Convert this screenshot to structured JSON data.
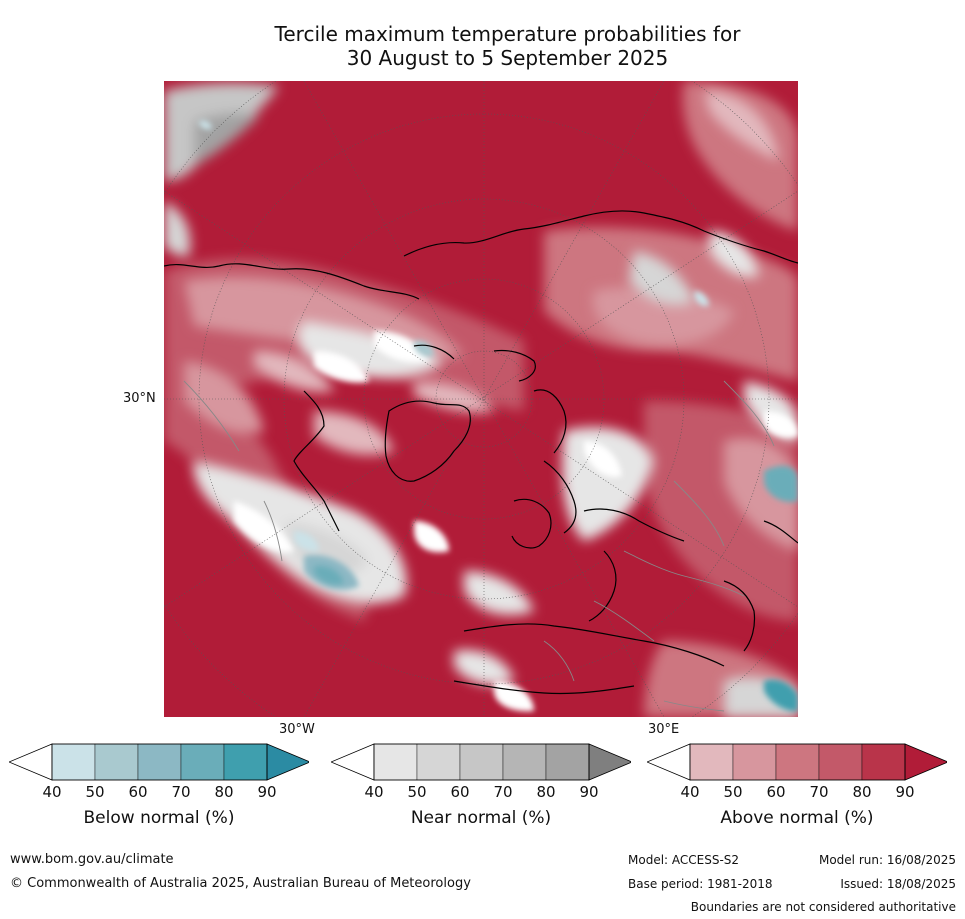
{
  "title_line1": "Tercile maximum temperature probabilities for",
  "title_line2": "30 August to 5 September 2025",
  "map": {
    "lat_label": "30°N",
    "lon_label_west": "30°W",
    "lon_label_east": "30°E",
    "projection": "north-polar-stereographic"
  },
  "colorbars": [
    {
      "title": "Below normal (%)",
      "ticks": [
        "40",
        "50",
        "60",
        "70",
        "80",
        "90"
      ],
      "colors": [
        "#ffffff",
        "#cbe2e8",
        "#a9c9cf",
        "#8cb8c4",
        "#6aadb9",
        "#3f9fae",
        "#2b8ba3"
      ]
    },
    {
      "title": "Near normal (%)",
      "ticks": [
        "40",
        "50",
        "60",
        "70",
        "80",
        "90"
      ],
      "colors": [
        "#ffffff",
        "#e6e6e6",
        "#d6d6d6",
        "#c6c6c6",
        "#b5b5b5",
        "#a3a3a3",
        "#7f7f7f"
      ]
    },
    {
      "title": "Above normal (%)",
      "ticks": [
        "40",
        "50",
        "60",
        "70",
        "80",
        "90"
      ],
      "colors": [
        "#ffffff",
        "#e2b8bd",
        "#d7969e",
        "#cd7680",
        "#c35969",
        "#b9344a",
        "#b11c38"
      ]
    }
  ],
  "footer": {
    "url": "www.bom.gov.au/climate",
    "copyright": "© Commonwealth of Australia 2025, Australian Bureau of Meteorology",
    "model": "Model: ACCESS-S2",
    "base_period": "Base period: 1981-2018",
    "model_run": "Model run: 16/08/2025",
    "issued": "Issued: 18/08/2025",
    "boundaries_note": "Boundaries are not considered authoritative"
  }
}
